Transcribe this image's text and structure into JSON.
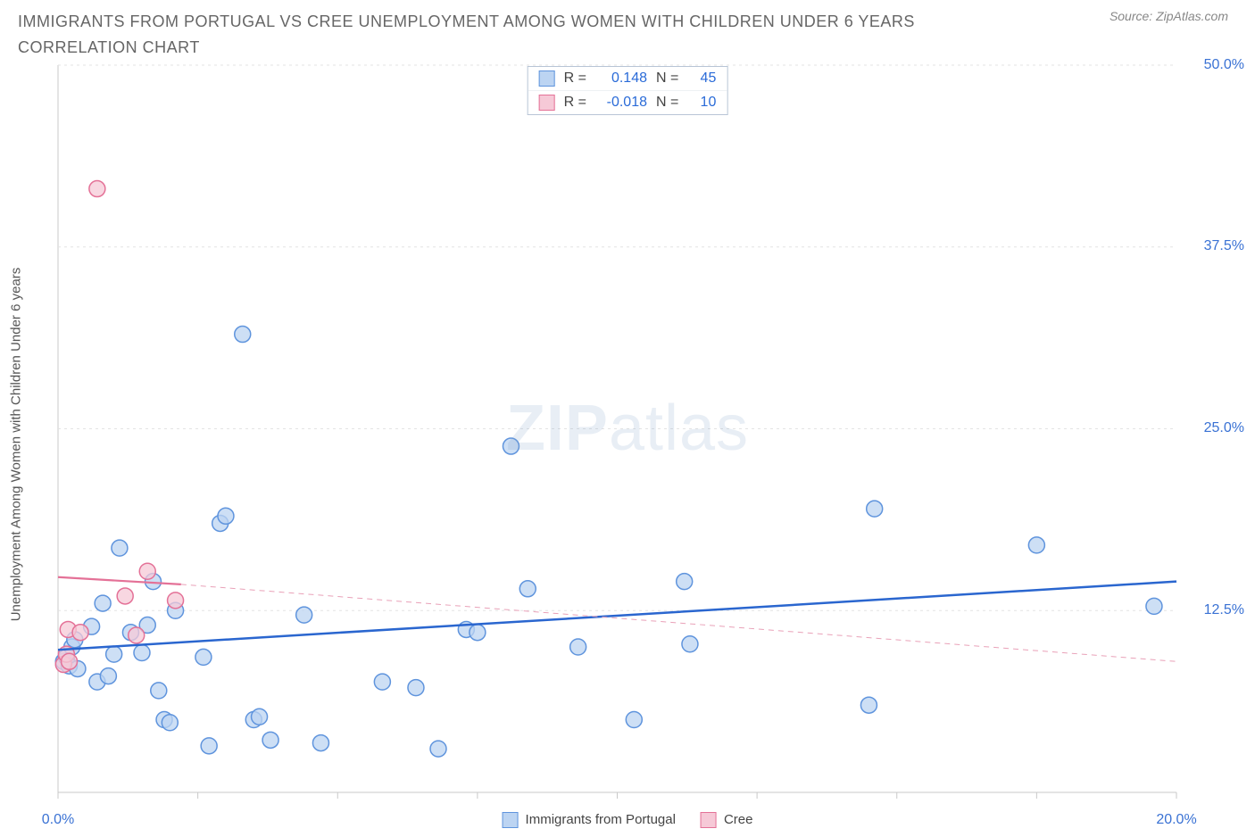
{
  "title": "IMMIGRANTS FROM PORTUGAL VS CREE UNEMPLOYMENT AMONG WOMEN WITH CHILDREN UNDER 6 YEARS CORRELATION CHART",
  "source": "Source: ZipAtlas.com",
  "watermark_a": "ZIP",
  "watermark_b": "atlas",
  "chart": {
    "type": "scatter",
    "background_color": "#ffffff",
    "plot_border_color": "#c9c9c9",
    "grid_color": "#e3e3e3",
    "xlabel": "",
    "ylabel": "Unemployment Among Women with Children Under 6 years",
    "ylabel_fontsize": 15,
    "xlim": [
      0,
      20
    ],
    "ylim": [
      0,
      50
    ],
    "x_ticks": [
      0,
      2.5,
      5,
      7.5,
      10,
      12.5,
      15,
      17.5,
      20
    ],
    "x_tick_labels": {
      "0": "0.0%",
      "20": "20.0%"
    },
    "y_ticks": [
      12.5,
      25,
      37.5,
      50
    ],
    "y_tick_labels": {
      "12.5": "12.5%",
      "25": "25.0%",
      "37.5": "37.5%",
      "50": "50.0%"
    },
    "marker_radius": 9,
    "marker_stroke_width": 1.5,
    "series": [
      {
        "name": "Immigrants from Portugal",
        "fill": "#bcd4f2",
        "stroke": "#5f94dd",
        "legend_swatch_fill": "#bcd4f2",
        "legend_swatch_stroke": "#5f94dd",
        "R_label": "R =",
        "R": "0.148",
        "N_label": "N =",
        "N": "45",
        "trend": {
          "x1": 0,
          "y1": 9.8,
          "x2": 20,
          "y2": 14.5,
          "stroke": "#2a66cf",
          "width": 2.5,
          "dash": ""
        },
        "points": [
          [
            0.1,
            9.0
          ],
          [
            0.15,
            9.3
          ],
          [
            0.2,
            8.7
          ],
          [
            0.25,
            10.0
          ],
          [
            0.3,
            10.5
          ],
          [
            0.35,
            8.5
          ],
          [
            0.6,
            11.4
          ],
          [
            0.7,
            7.6
          ],
          [
            0.8,
            13.0
          ],
          [
            0.9,
            8.0
          ],
          [
            1.0,
            9.5
          ],
          [
            1.1,
            16.8
          ],
          [
            1.3,
            11.0
          ],
          [
            1.5,
            9.6
          ],
          [
            1.6,
            11.5
          ],
          [
            1.7,
            14.5
          ],
          [
            1.8,
            7.0
          ],
          [
            1.9,
            5.0
          ],
          [
            2.0,
            4.8
          ],
          [
            2.1,
            12.5
          ],
          [
            2.6,
            9.3
          ],
          [
            2.7,
            3.2
          ],
          [
            2.9,
            18.5
          ],
          [
            3.0,
            19.0
          ],
          [
            3.3,
            31.5
          ],
          [
            3.5,
            5.0
          ],
          [
            3.6,
            5.2
          ],
          [
            3.8,
            3.6
          ],
          [
            4.4,
            12.2
          ],
          [
            4.7,
            3.4
          ],
          [
            5.8,
            7.6
          ],
          [
            6.4,
            7.2
          ],
          [
            6.8,
            3.0
          ],
          [
            7.3,
            11.2
          ],
          [
            7.5,
            11.0
          ],
          [
            8.1,
            23.8
          ],
          [
            8.4,
            14.0
          ],
          [
            9.3,
            10.0
          ],
          [
            10.3,
            5.0
          ],
          [
            11.2,
            14.5
          ],
          [
            11.3,
            10.2
          ],
          [
            14.6,
            19.5
          ],
          [
            14.5,
            6.0
          ],
          [
            17.5,
            17.0
          ],
          [
            19.6,
            12.8
          ]
        ]
      },
      {
        "name": "Cree",
        "fill": "#f6c9d7",
        "stroke": "#e47197",
        "legend_swatch_fill": "#f6c9d7",
        "legend_swatch_stroke": "#e47197",
        "R_label": "R =",
        "R": "-0.018",
        "N_label": "N =",
        "N": "10",
        "trend_solid": {
          "x1": 0,
          "y1": 14.8,
          "x2": 2.2,
          "y2": 14.3,
          "stroke": "#e47197",
          "width": 2.2
        },
        "trend_dash": {
          "x1": 2.2,
          "y1": 14.3,
          "x2": 20,
          "y2": 9.0,
          "stroke": "#e9a1b8",
          "width": 1,
          "dash": "6 5"
        },
        "points": [
          [
            0.1,
            8.8
          ],
          [
            0.15,
            9.5
          ],
          [
            0.2,
            9.0
          ],
          [
            0.18,
            11.2
          ],
          [
            0.4,
            11.0
          ],
          [
            0.7,
            41.5
          ],
          [
            1.2,
            13.5
          ],
          [
            1.4,
            10.8
          ],
          [
            1.6,
            15.2
          ],
          [
            2.1,
            13.2
          ]
        ]
      }
    ],
    "legend_bottom": [
      {
        "label": "Immigrants from Portugal",
        "fill": "#bcd4f2",
        "stroke": "#5f94dd"
      },
      {
        "label": "Cree",
        "fill": "#f6c9d7",
        "stroke": "#e47197"
      }
    ]
  }
}
